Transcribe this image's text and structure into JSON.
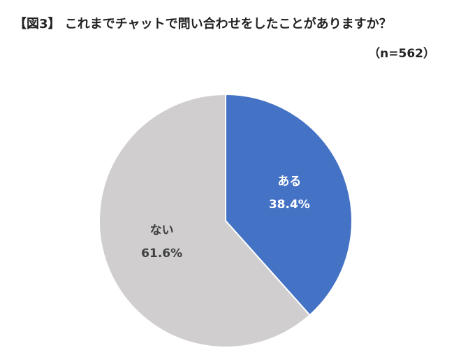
{
  "title": "【図3】 これまでチャットで問い合わせをしたことがありますか？",
  "note": "（n=562）",
  "chart_data": {
    "type": "pie",
    "slices": [
      {
        "label": "ある",
        "value": 38.4,
        "value_label": "38.4%",
        "color": "#4472c4",
        "text_color": "#ffffff"
      },
      {
        "label": "ない",
        "value": 61.6,
        "value_label": "61.6%",
        "color": "#d0cece",
        "text_color": "#404040"
      }
    ]
  }
}
